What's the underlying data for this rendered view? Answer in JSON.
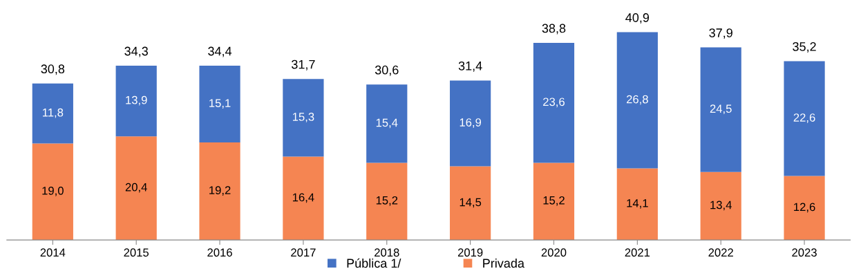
{
  "chart_data": {
    "type": "bar",
    "stacked": true,
    "categories": [
      "2014",
      "2015",
      "2016",
      "2017",
      "2018",
      "2019",
      "2020",
      "2021",
      "2022",
      "2023"
    ],
    "series": [
      {
        "name": "Privada",
        "color": "#f58552",
        "values": [
          19.0,
          20.4,
          19.2,
          16.4,
          15.2,
          14.5,
          15.2,
          14.1,
          13.4,
          12.6
        ],
        "value_labels": [
          "19,0",
          "20,4",
          "19,2",
          "16,4",
          "15,2",
          "14,5",
          "15,2",
          "14,1",
          "13,4",
          "12,6"
        ]
      },
      {
        "name": "Pública 1/",
        "color": "#4472c4",
        "values": [
          11.8,
          13.9,
          15.1,
          15.3,
          15.4,
          16.9,
          23.6,
          26.8,
          24.5,
          22.6
        ],
        "value_labels": [
          "11,8",
          "13,9",
          "15,1",
          "15,3",
          "15,4",
          "16,9",
          "23,6",
          "26,8",
          "24,5",
          "22,6"
        ]
      }
    ],
    "totals": [
      "30,8",
      "34,3",
      "34,4",
      "31,7",
      "30,6",
      "31,4",
      "38,8",
      "40,9",
      "37,9",
      "35,2"
    ],
    "tick_labels": "x",
    "grid": false,
    "legend": "bottom"
  }
}
